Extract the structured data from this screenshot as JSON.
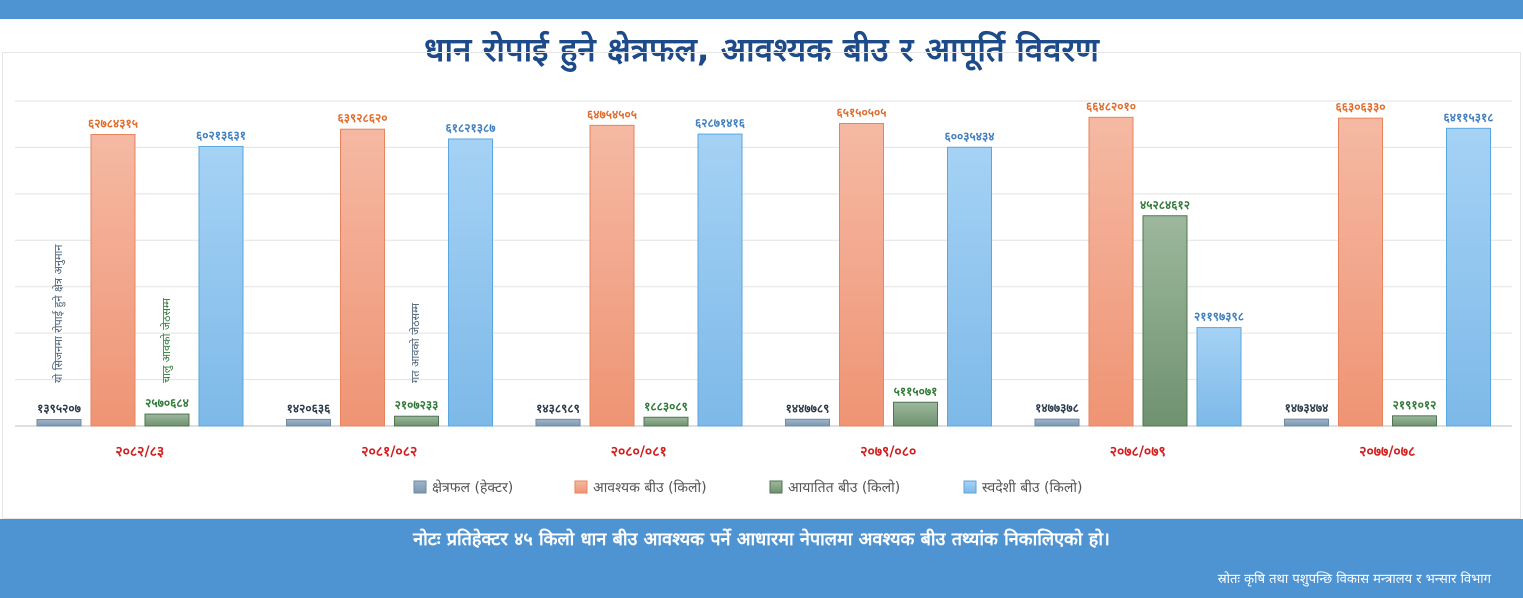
{
  "title": "धान रोपाई हुने क्षेत्रफल, आवश्यक बीउ र आपूर्ति विवरण",
  "note": "नोटः प्रतिहेक्टर ४५ किलो धान बीउ आवश्यक पर्ने आधारमा नेपालमा अवश्यक बीउ तथ्यांक निकालिएको हो।",
  "source": "स्रोतः कृषि तथा पशुपन्छि विकास मन्त्रालय र भन्सार विभाग",
  "annotations": {
    "area_note": "यो सिजनमा रोपाई हुने क्षेत्र अनुमान",
    "import_note_1": "चालु आवको जेठसम्म",
    "import_note_2": "गत आवको जेठसम्म"
  },
  "colors": {
    "area": "#8fa7bd",
    "required": "#f2a78a",
    "imported": "#7f9f80",
    "domestic": "#8fc5ee",
    "label_area": "#2b3a4a",
    "label_required": "#e06c2c",
    "label_imported": "#2f7a37",
    "label_domestic": "#3f7fc0",
    "category": "#d32020"
  },
  "chart_data": {
    "type": "bar",
    "categories": [
      "२०८२/८३",
      "२०८१/०८२",
      "२०८०/०८१",
      "२०७९/०८०",
      "२०७८/०७९",
      "२०७७/०७८"
    ],
    "series": [
      {
        "name": "क्षेत्रफल (हेक्टर)",
        "values": [
          1395207,
          1420636,
          1438989,
          1447789,
          1477378,
          1473474
        ],
        "labels": [
          "१३९५२०७",
          "१४२०६३६",
          "१४३८९८९",
          "१४४७७८९",
          "१४७७३७८",
          "१४७३४७४"
        ]
      },
      {
        "name": "आवश्यक बीउ (किलो)",
        "values": [
          62784315,
          63928620,
          64754505,
          65150505,
          66482010,
          66306330
        ],
        "labels": [
          "६२७८४३१५",
          "६३९२८६२०",
          "६४७५४५०५",
          "६५१५०५०५",
          "६६४८२०१०",
          "६६३०६३३०"
        ]
      },
      {
        "name": "आयातित बीउ (किलो)",
        "values": [
          2570684,
          2107233,
          1883089,
          5115071,
          45284612,
          2191012
        ],
        "labels": [
          "२५७०६८४",
          "२१०७२३३",
          "१८८३०८९",
          "५११५०७१",
          "४५२८४६१२",
          "२१९१०१२"
        ]
      },
      {
        "name": "स्वदेशी बीउ (किलो)",
        "values": [
          60213631,
          61821387,
          62871416,
          60035434,
          21197398,
          64115318
        ],
        "labels": [
          "६०२१३६३१",
          "६१८२१३८७",
          "६२८७१४१६",
          "६००३५४३४",
          "२११९७३९८",
          "६४११५३१८"
        ]
      }
    ],
    "ylim": [
      0,
      70000000
    ],
    "grid": true,
    "legend": "bottom"
  }
}
